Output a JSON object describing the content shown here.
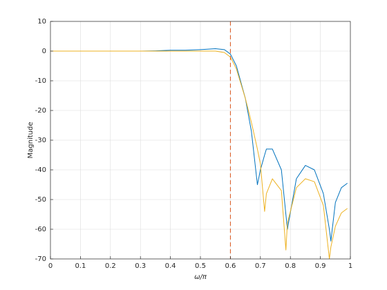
{
  "chart_data": {
    "type": "line",
    "xlabel": "ω/π",
    "ylabel": "Magnitude",
    "xlim": [
      0,
      1
    ],
    "ylim": [
      -70,
      10
    ],
    "xticks": [
      0,
      0.1,
      0.2,
      0.3,
      0.4,
      0.5,
      0.6,
      0.7,
      0.8,
      0.9,
      1
    ],
    "yticks": [
      -70,
      -60,
      -50,
      -40,
      -30,
      -20,
      -10,
      0,
      10
    ],
    "grid": true,
    "vline": {
      "x": 0.6,
      "color": "#d95319"
    },
    "x": [
      0,
      0.1,
      0.2,
      0.3,
      0.35,
      0.4,
      0.45,
      0.5,
      0.55,
      0.58,
      0.6,
      0.62,
      0.65,
      0.67,
      0.69,
      0.7,
      0.714,
      0.72,
      0.74,
      0.77,
      0.785,
      0.79,
      0.82,
      0.85,
      0.88,
      0.91,
      0.93,
      0.935,
      0.95,
      0.97,
      0.99
    ],
    "series": [
      {
        "color": "#0072bd",
        "values": [
          0,
          0,
          0,
          0,
          0.1,
          0.3,
          0.3,
          0.5,
          0.8,
          0.5,
          -1,
          -5,
          -16,
          -27,
          -45,
          -40,
          -35,
          -33,
          -33,
          -40,
          -55,
          -60,
          -43,
          -38.5,
          -40,
          -48,
          -60,
          -64,
          -51,
          -46,
          -44.5
        ]
      },
      {
        "color": "#edb120",
        "values": [
          0,
          0,
          0,
          0,
          0,
          0,
          0,
          0,
          0,
          -0.5,
          -2,
          -6,
          -16,
          -24,
          -33,
          -38,
          -54,
          -48,
          -43,
          -47,
          -67,
          -58,
          -46,
          -43,
          -44,
          -52,
          -70,
          -66,
          -59,
          -54.5,
          -53
        ]
      }
    ]
  }
}
